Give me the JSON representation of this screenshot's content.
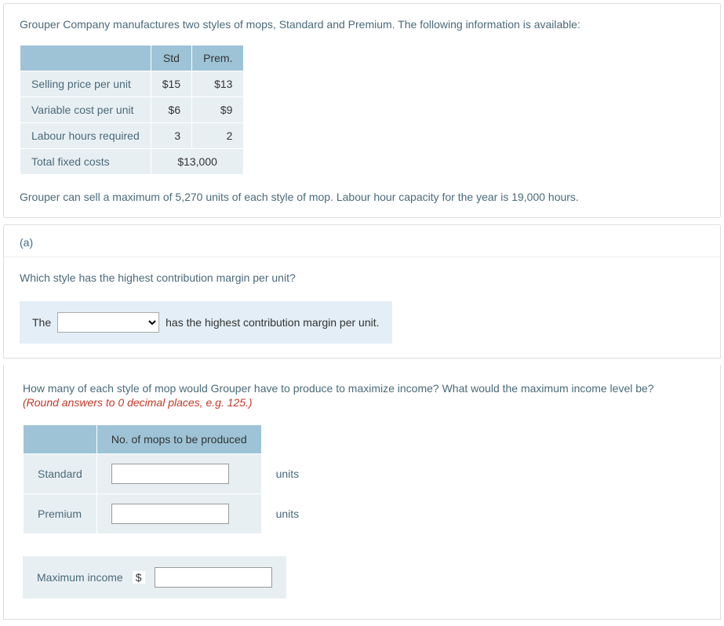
{
  "intro": "Grouper Company manufactures two styles of mops, Standard and Premium. The following information is available:",
  "table": {
    "col1": "Std",
    "col2": "Prem.",
    "rows": {
      "selling_label": "Selling price per unit",
      "selling_std": "$15",
      "selling_prem": "$13",
      "varcost_label": "Variable cost per unit",
      "varcost_std": "$6",
      "varcost_prem": "$9",
      "labour_label": "Labour hours required",
      "labour_std": "3",
      "labour_prem": "2",
      "fixed_label": "Total fixed costs",
      "fixed_merged": "$13,000"
    }
  },
  "constraint": "Grouper can sell a maximum of 5,270 units of each style of mop. Labour hour capacity for the year is 19,000 hours.",
  "partA": {
    "label": "(a)",
    "question": "Which style has the highest contribution margin per unit?",
    "prefix": "The",
    "suffix": "has the highest contribution margin per unit.",
    "select_placeholder": ""
  },
  "partB": {
    "question": "How many of each style of mop would Grouper have to produce to maximize income? What would the maximum income level be?",
    "hint": "(Round answers to 0 decimal places, e.g. 125.)",
    "col_header": "No. of mops to be produced",
    "row1_label": "Standard",
    "row2_label": "Premium",
    "units_label": "units",
    "max_label": "Maximum income",
    "currency": "$"
  },
  "colors": {
    "header_bg": "#9ec3d6",
    "cell_bg": "#e8eff3",
    "text_muted": "#4a6a7a",
    "hint_red": "#c0392b",
    "answer_bg": "#e3eef6"
  }
}
